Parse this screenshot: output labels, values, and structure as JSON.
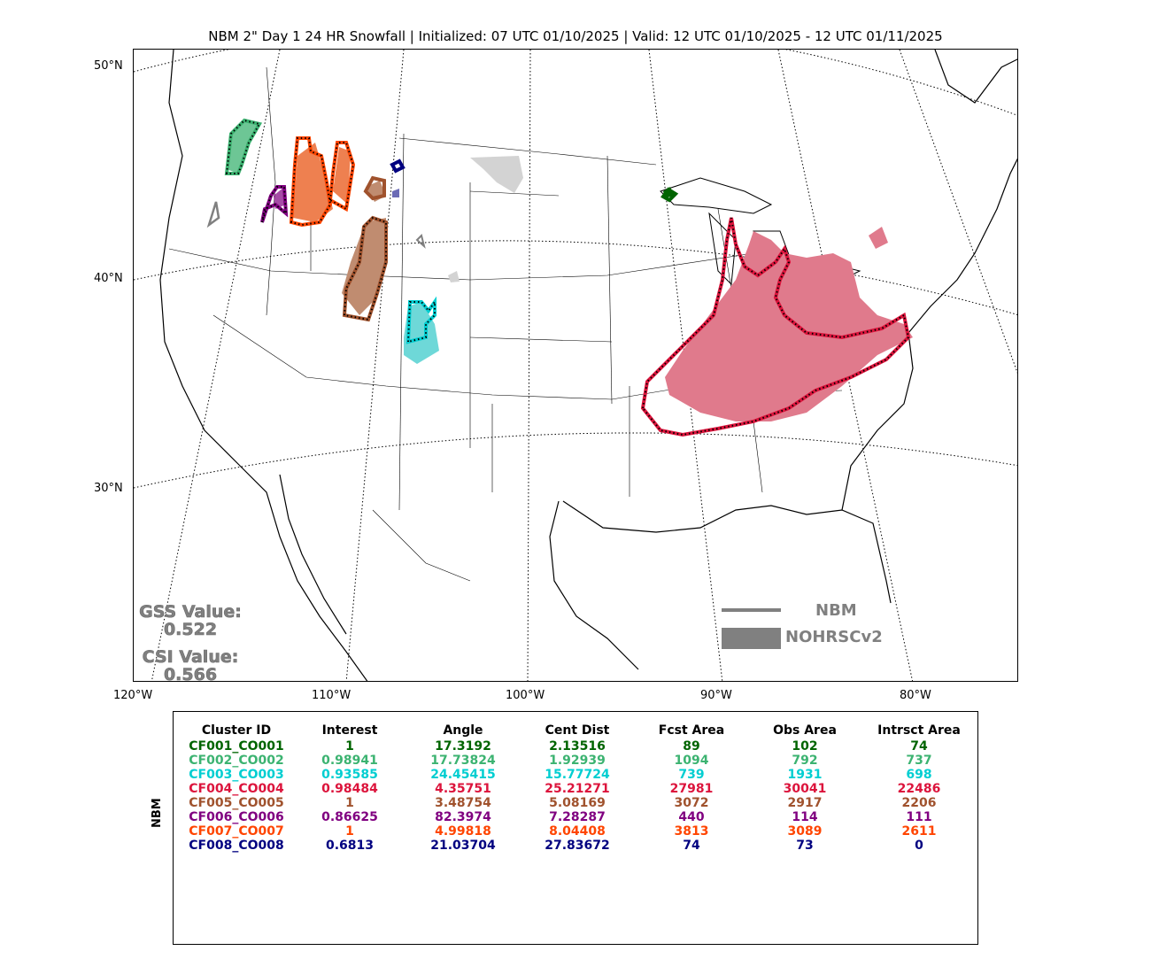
{
  "title": "NBM 2\" Day 1 24 HR Snowfall | Initialized: 07 UTC 01/10/2025 | Valid: 12 UTC 01/10/2025 - 12 UTC 01/11/2025",
  "lat_labels": [
    "50°N",
    "40°N",
    "30°N"
  ],
  "lon_labels": [
    "120°W",
    "110°W",
    "100°W",
    "90°W",
    "80°W"
  ],
  "scores": {
    "gss_label": "GSS Value:",
    "gss_value": "0.522",
    "csi_label": "CSI Value:",
    "csi_value": "0.566"
  },
  "legend": {
    "forecast": "NBM",
    "observed": "NOHRSCv2",
    "color": "#808080"
  },
  "side_label": "NBM",
  "table": {
    "headers": [
      "Cluster ID",
      "Interest",
      "Angle",
      "Cent Dist",
      "Fcst Area",
      "Obs Area",
      "Intrsct Area"
    ],
    "rows": [
      {
        "color": "#006400",
        "cells": [
          "CF001_CO001",
          "1",
          "17.3192",
          "2.13516",
          "89",
          "102",
          "74"
        ]
      },
      {
        "color": "#3cb371",
        "cells": [
          "CF002_CO002",
          "0.98941",
          "17.73824",
          "1.92939",
          "1094",
          "792",
          "737"
        ]
      },
      {
        "color": "#00ced1",
        "cells": [
          "CF003_CO003",
          "0.93585",
          "24.45415",
          "15.77724",
          "739",
          "1931",
          "698"
        ]
      },
      {
        "color": "#dc143c",
        "cells": [
          "CF004_CO004",
          "0.98484",
          "4.35751",
          "25.21271",
          "27981",
          "30041",
          "22486"
        ]
      },
      {
        "color": "#a0522d",
        "cells": [
          "CF005_CO005",
          "1",
          "3.48754",
          "5.08169",
          "3072",
          "2917",
          "2206"
        ]
      },
      {
        "color": "#800080",
        "cells": [
          "CF006_CO006",
          "0.86625",
          "82.3974",
          "7.28287",
          "440",
          "114",
          "111"
        ]
      },
      {
        "color": "#ff4500",
        "cells": [
          "CF007_CO007",
          "1",
          "4.99818",
          "8.04408",
          "3813",
          "3089",
          "2611"
        ]
      },
      {
        "color": "#000080",
        "cells": [
          "CF008_CO008",
          "0.6813",
          "21.03704",
          "27.83672",
          "74",
          "73",
          "0"
        ]
      }
    ]
  },
  "map_colors": {
    "cf001": "#006400",
    "cf002": "#3cb371",
    "cf003": "#00ced1",
    "cf004": "#dc143c",
    "cf005": "#a0522d",
    "cf006": "#800080",
    "cf007": "#ff4500",
    "cf008": "#000080",
    "nbm_only": "#808080",
    "obs_only": "#d3d3d3"
  }
}
